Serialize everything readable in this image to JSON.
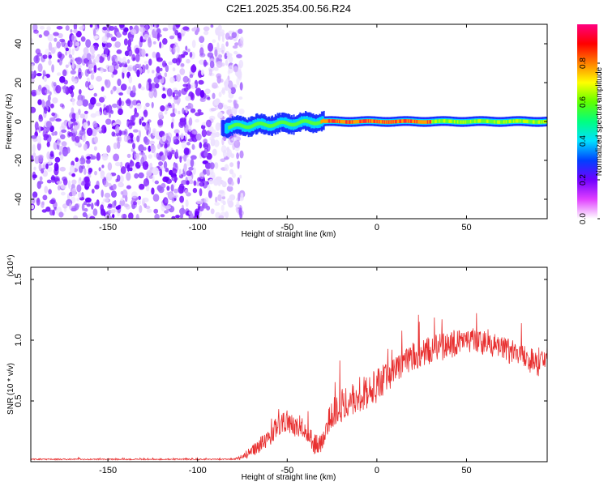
{
  "title": "C2E1.2025.354.00.56.R24",
  "chart_data": [
    {
      "type": "heatmap",
      "name": "spectrogram",
      "xlabel": "Height of straight line (km)",
      "ylabel": "Frequency (Hz)",
      "xlim": [
        -193,
        95
      ],
      "ylim": [
        -50,
        50
      ],
      "xticks": [
        -150,
        -100,
        -50,
        0,
        50
      ],
      "xtick_labels": [
        "-150",
        "-100",
        "-50",
        "0",
        "50"
      ],
      "yticks": [
        -40,
        -20,
        0,
        20,
        40
      ],
      "ytick_labels": [
        "-40",
        "-20",
        "0",
        "20",
        "40"
      ],
      "noise_region_x": [
        -193,
        -75
      ],
      "signal_start_x": -87,
      "signal_center_hz": 0,
      "colorbar": {
        "label": "Normalized spectral amplitude",
        "range": [
          0,
          1
        ],
        "ticks": [
          0.0,
          0.2,
          0.4,
          0.6,
          0.8
        ],
        "tick_labels": [
          "0.0",
          "0.2",
          "0.4",
          "0.6",
          "0.8"
        ],
        "colors": [
          "#ffffff",
          "#e040ff",
          "#7000ff",
          "#0040ff",
          "#00e0ff",
          "#00ff80",
          "#60ff00",
          "#ffff00",
          "#ff8000",
          "#ff0000",
          "#ff0080"
        ]
      }
    },
    {
      "type": "line",
      "name": "snr",
      "xlabel": "Height of straight line (km)",
      "ylabel": "SNR (10 * v/v)",
      "y_multiplier": "(x10⁴)",
      "xlim": [
        -193,
        95
      ],
      "ylim": [
        0,
        1.6
      ],
      "xticks": [
        -150,
        -100,
        -50,
        0,
        50
      ],
      "xtick_labels": [
        "-150",
        "-100",
        "-50",
        "0",
        "50"
      ],
      "yticks": [
        0.5,
        1.0,
        1.5
      ],
      "ytick_labels": [
        "0.5",
        "1.0",
        "1.5"
      ],
      "line_color": "#e83030",
      "trend": {
        "x": [
          -193,
          -80,
          -75,
          -70,
          -60,
          -55,
          -50,
          -45,
          -40,
          -35,
          -32,
          -28,
          -25,
          -20,
          -15,
          -10,
          -5,
          0,
          5,
          10,
          20,
          30,
          40,
          50,
          60,
          70,
          80,
          90,
          94
        ],
        "y": [
          0.02,
          0.02,
          0.04,
          0.08,
          0.2,
          0.3,
          0.34,
          0.28,
          0.25,
          0.15,
          0.12,
          0.3,
          0.4,
          0.46,
          0.52,
          0.55,
          0.58,
          0.62,
          0.68,
          0.74,
          0.85,
          0.92,
          0.96,
          1.0,
          0.98,
          0.93,
          0.88,
          0.82,
          0.85
        ]
      },
      "jitter": {
        "x": [
          -193,
          -80,
          -75,
          -60,
          -50,
          -40,
          -30,
          -20,
          0,
          30,
          60,
          94
        ],
        "y": [
          0.005,
          0.005,
          0.03,
          0.08,
          0.09,
          0.07,
          0.1,
          0.14,
          0.14,
          0.12,
          0.1,
          0.12
        ]
      }
    }
  ]
}
